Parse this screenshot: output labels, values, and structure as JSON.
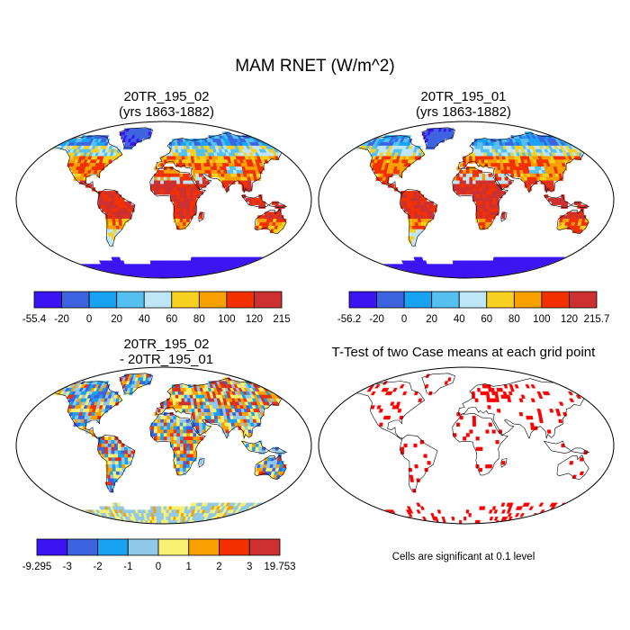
{
  "figure": {
    "title": "MAM RNET (W/m^2)"
  },
  "panels": [
    {
      "title_line1": "20TR_195_02",
      "title_line2": "(yrs 1863-1882)",
      "colorbar": {
        "colors": [
          "#3b14f2",
          "#3d63e0",
          "#17a2f2",
          "#55c0f0",
          "#bfe6f7",
          "#f8d020",
          "#f8a000",
          "#f23000",
          "#cc3030"
        ],
        "labels": [
          "-55.4",
          "-20",
          "0",
          "20",
          "40",
          "60",
          "80",
          "100",
          "120",
          "215"
        ]
      }
    },
    {
      "title_line1": "20TR_195_01",
      "title_line2": "(yrs 1863-1882)",
      "colorbar": {
        "colors": [
          "#3b14f2",
          "#3d63e0",
          "#17a2f2",
          "#55c0f0",
          "#bfe6f7",
          "#f8d020",
          "#f8a000",
          "#f23000",
          "#cc3030"
        ],
        "labels": [
          "-56.2",
          "-20",
          "0",
          "20",
          "40",
          "60",
          "80",
          "100",
          "120",
          "215.7"
        ]
      }
    },
    {
      "title_line1": "20TR_195_02",
      "title_line2": "- 20TR_195_01",
      "colorbar": {
        "colors": [
          "#3b14f2",
          "#3d63e0",
          "#17a2f2",
          "#90c8ea",
          "#f8f070",
          "#f8a000",
          "#f23000",
          "#cc3030"
        ],
        "labels": [
          "-9.295",
          "-3",
          "-2",
          "-1",
          "0",
          "1",
          "2",
          "3",
          "19.753"
        ]
      }
    },
    {
      "title_line1": "T-Test of two Case means at each grid point",
      "note": "Cells are significant at 0.1 level",
      "significant_color": "#ff0000"
    }
  ]
}
